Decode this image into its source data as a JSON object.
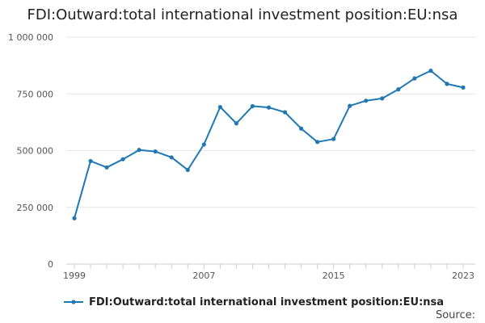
{
  "chart_data": {
    "type": "line",
    "title": "FDI:Outward:total international investment position:EU:nsa",
    "x": [
      1999,
      2000,
      2001,
      2002,
      2003,
      2004,
      2005,
      2006,
      2007,
      2008,
      2009,
      2010,
      2011,
      2012,
      2013,
      2014,
      2015,
      2016,
      2017,
      2018,
      2019,
      2020,
      2021,
      2022,
      2023
    ],
    "series": [
      {
        "name": "FDI:Outward:total international investment position:EU:nsa",
        "color": "#1f78b4",
        "values": [
          202000,
          454000,
          426000,
          462000,
          503000,
          496000,
          470000,
          415000,
          527000,
          692000,
          620000,
          696000,
          690000,
          669000,
          597000,
          538000,
          551000,
          697000,
          720000,
          730000,
          770000,
          818000,
          852000,
          794000,
          778000
        ]
      }
    ],
    "xlabel": "",
    "ylabel": "",
    "ylim": [
      0,
      1000000
    ],
    "y_ticks": [
      0,
      250000,
      500000,
      750000,
      1000000
    ],
    "y_tick_labels": [
      "0",
      "250 000",
      "500 000",
      "750 000",
      "1 000 000"
    ],
    "x_tick_labels": [
      "1999",
      "2007",
      "2015",
      "2023"
    ],
    "grid": true,
    "legend_position": "bottom-left"
  },
  "source_label": "Source:"
}
